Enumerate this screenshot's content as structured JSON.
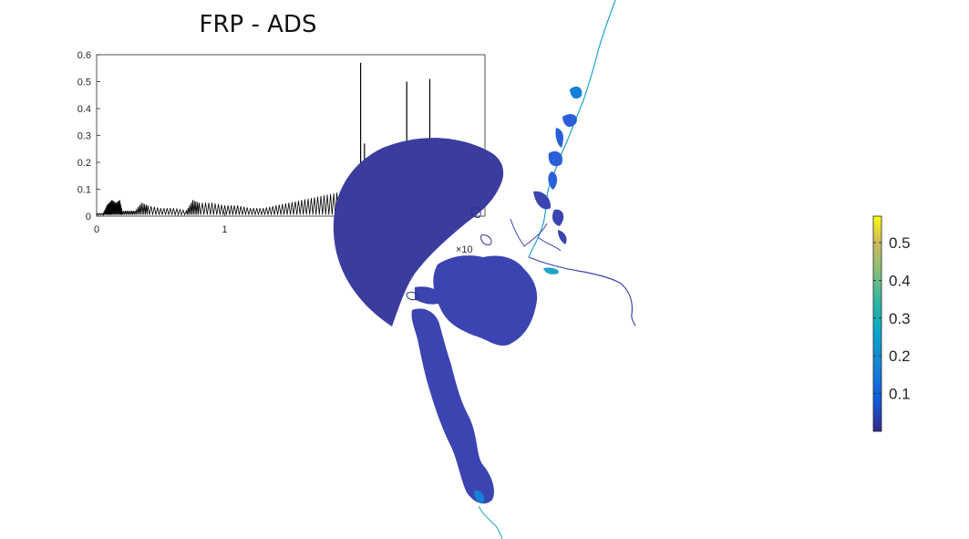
{
  "title": "FRP - ADS",
  "chart_data": [
    {
      "type": "line",
      "title": "FRP - ADS",
      "xlabel": "",
      "ylabel": "",
      "xlim": [
        0,
        2
      ],
      "ylim": [
        0,
        0.6
      ],
      "x_exponent_label": "×10",
      "x_ticks": [
        "0",
        "1"
      ],
      "y_ticks": [
        "0",
        "0.1",
        "0.2",
        "0.3",
        "0.4",
        "0.5",
        "0.6"
      ],
      "series": [
        {
          "color": "#000000",
          "x": [
            0,
            0.05,
            0.08,
            0.1,
            0.12,
            0.15,
            0.18,
            0.2,
            0.25,
            0.3,
            0.35,
            0.4,
            0.5,
            0.6,
            0.7,
            0.75,
            0.8,
            0.9,
            1.0,
            1.1,
            1.2,
            1.3,
            1.4,
            1.5,
            1.6,
            1.7,
            1.8,
            1.9,
            1.95,
            2.0
          ],
          "y": [
            0.01,
            0.01,
            0.04,
            0.05,
            0.06,
            0.05,
            0.06,
            0.02,
            0.02,
            0.02,
            0.05,
            0.04,
            0.03,
            0.03,
            0.02,
            0.06,
            0.05,
            0.05,
            0.04,
            0.04,
            0.03,
            0.03,
            0.04,
            0.05,
            0.06,
            0.07,
            0.08,
            0.09,
            0.1,
            0.12
          ]
        }
      ],
      "visible_peaks": [
        {
          "x": 2.06,
          "y": 0.57
        },
        {
          "x": 2.09,
          "y": 0.27
        },
        {
          "x": 2.42,
          "y": 0.5
        },
        {
          "x": 2.6,
          "y": 0.51
        }
      ]
    },
    {
      "type": "heatmap",
      "colormap": "parula",
      "clim": [
        0,
        0.57
      ],
      "colorbar_ticks": [
        "0.1",
        "0.2",
        "0.3",
        "0.4",
        "0.5"
      ],
      "colorbar_tick_values": [
        0.1,
        0.2,
        0.3,
        0.4,
        0.5
      ],
      "dominant_value": 0.02,
      "max_value_region": 0.2
    }
  ],
  "colors": {
    "domain_dark": "#3b3d9e",
    "domain_mid": "#3b44b0",
    "channel_blue": "#2b5fd8",
    "channel_cyan": "#1fa3c8",
    "outline": "#2f2f8a"
  }
}
